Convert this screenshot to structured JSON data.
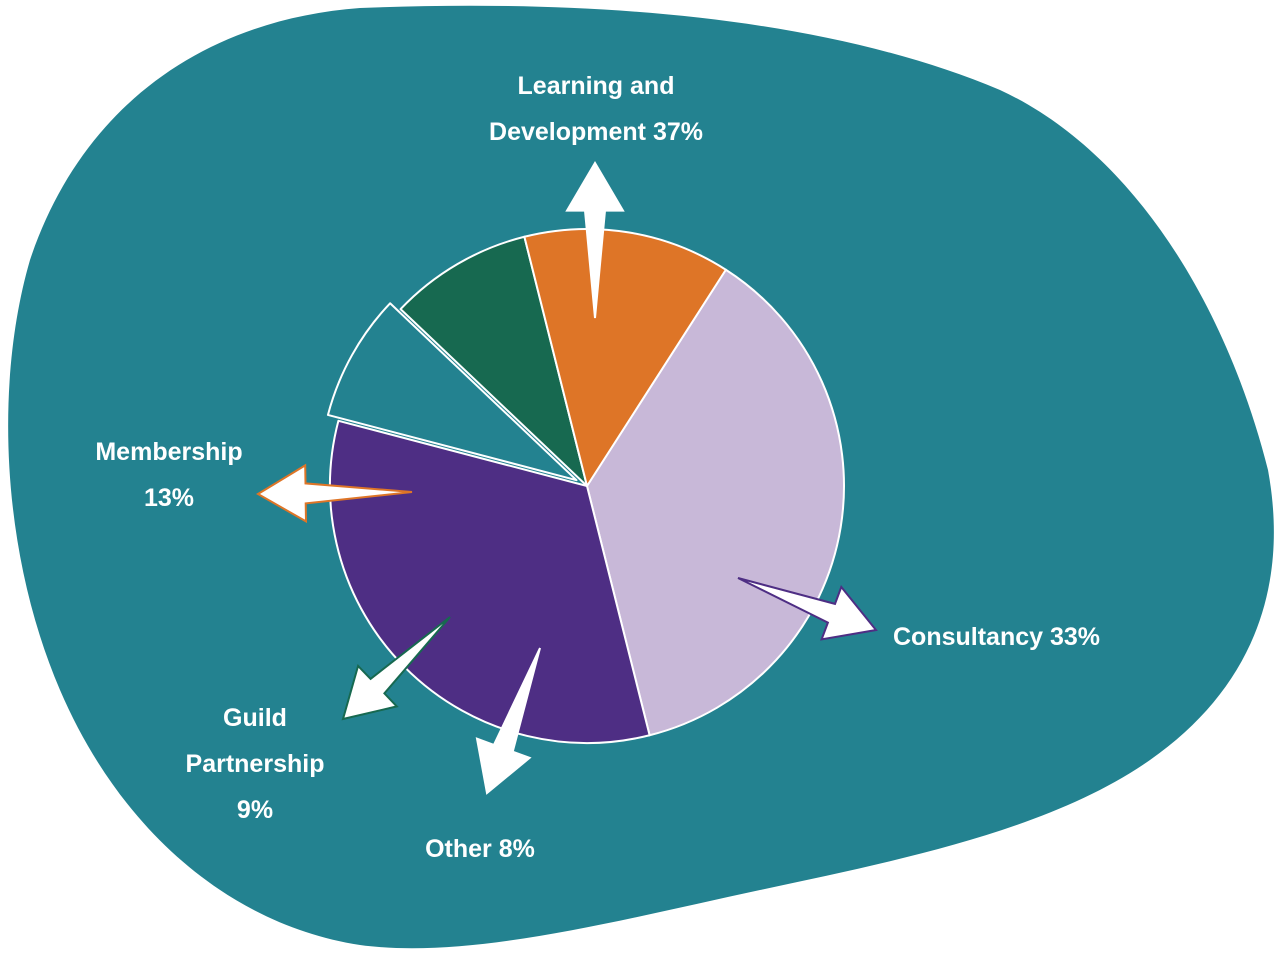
{
  "colors": {
    "background_blob": "#238290",
    "slice_outline": "#ffffff"
  },
  "chart_data": {
    "type": "pie",
    "title": "",
    "legend": "none",
    "slices": [
      {
        "name": "Learning and Development",
        "value": 37,
        "label": "Learning and Development 37%",
        "label_lines": [
          "Learning and",
          "Development 37%"
        ],
        "color": "#c8b8d8",
        "arrow_outline": "#ffffff"
      },
      {
        "name": "Consultancy",
        "value": 33,
        "label": "Consultancy 33%",
        "label_lines": [
          "Consultancy 33%"
        ],
        "color": "#4e2e84",
        "arrow_outline": "#4e2e84"
      },
      {
        "name": "Other",
        "value": 8,
        "label": "Other 8%",
        "label_lines": [
          "Other 8%"
        ],
        "color": "#238290",
        "arrow_outline": "#ffffff"
      },
      {
        "name": "Guild Partnership",
        "value": 9,
        "label": "Guild Partnership 9%",
        "label_lines": [
          "Guild",
          "Partnership",
          "9%"
        ],
        "color": "#176950",
        "arrow_outline": "#176950"
      },
      {
        "name": "Membership",
        "value": 13,
        "label": "Membership 13%",
        "label_lines": [
          "Membership",
          "13%"
        ],
        "color": "#de7527",
        "arrow_outline": "#de7527"
      }
    ]
  }
}
